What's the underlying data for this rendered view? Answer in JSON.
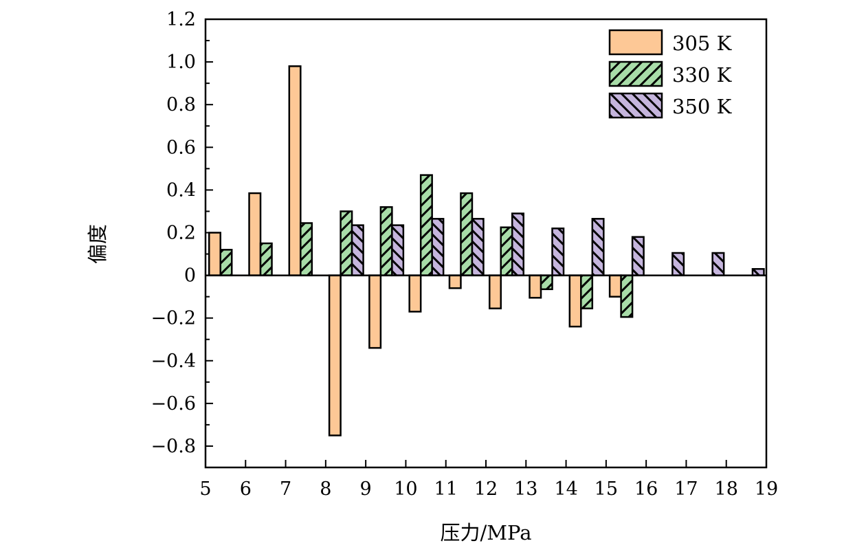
{
  "chart_data": {
    "type": "bar",
    "title": "",
    "xlabel": "压力/MPa",
    "ylabel": "偏度",
    "xlim": [
      5,
      19
    ],
    "ylim": [
      -0.9,
      1.2
    ],
    "x_ticks": [
      "5",
      "6",
      "7",
      "8",
      "9",
      "10",
      "11",
      "12",
      "13",
      "14",
      "15",
      "16",
      "17",
      "18",
      "19"
    ],
    "y_ticks": [
      {
        "value": 1.2,
        "label": "1.2"
      },
      {
        "value": 1.0,
        "label": "1.0"
      },
      {
        "value": 0.8,
        "label": "0.8"
      },
      {
        "value": 0.6,
        "label": "0.6"
      },
      {
        "value": 0.4,
        "label": "0.4"
      },
      {
        "value": 0.2,
        "label": "0.2"
      },
      {
        "value": 0,
        "label": "0"
      },
      {
        "value": -0.2,
        "label": "−0.2"
      },
      {
        "value": -0.4,
        "label": "−0.4"
      },
      {
        "value": -0.6,
        "label": "−0.6"
      },
      {
        "value": -0.8,
        "label": "−0.8"
      }
    ],
    "categories": [
      5,
      6,
      7,
      8,
      9,
      10,
      11,
      12,
      13,
      14,
      15,
      16,
      17,
      18
    ],
    "series": [
      {
        "name": "305 K",
        "color": "#FDC896",
        "pattern": "solid",
        "values": [
          0.2,
          0.385,
          0.98,
          -0.75,
          -0.34,
          -0.17,
          -0.06,
          -0.155,
          -0.105,
          -0.24,
          -0.1,
          null,
          null,
          null
        ]
      },
      {
        "name": "330 K",
        "color": "#A8DCA8",
        "pattern": "forward-hatch",
        "values": [
          0.12,
          0.15,
          0.245,
          0.3,
          0.32,
          0.47,
          0.385,
          0.225,
          -0.065,
          -0.155,
          -0.195,
          null,
          null,
          null
        ]
      },
      {
        "name": "350 K",
        "color": "#C5B5DD",
        "pattern": "back-hatch",
        "values": [
          null,
          null,
          null,
          0.235,
          0.235,
          0.265,
          0.265,
          0.29,
          0.22,
          0.265,
          0.18,
          0.105,
          0.105,
          0.03
        ]
      }
    ],
    "legend_position": "top-right",
    "grid": false
  }
}
